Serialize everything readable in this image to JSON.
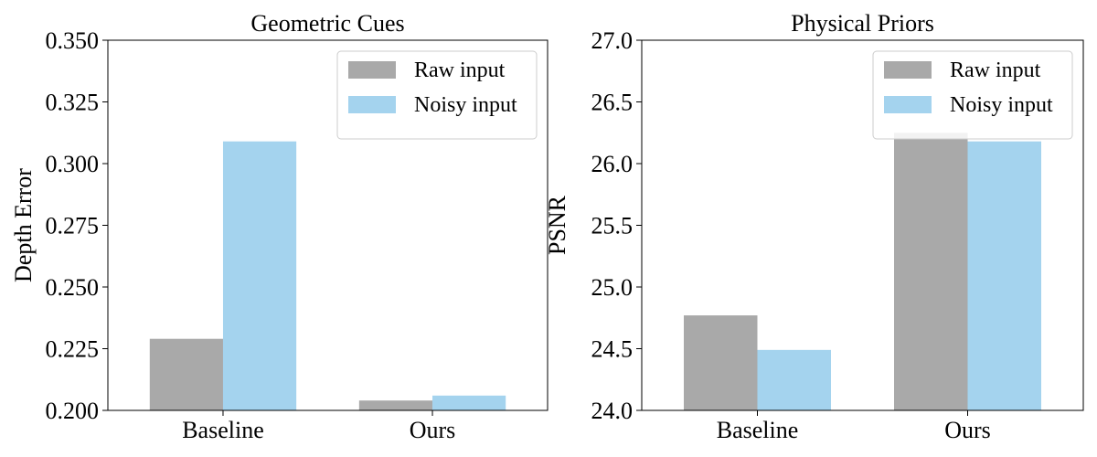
{
  "chart_data": [
    {
      "type": "bar",
      "title": "Geometric Cues",
      "xlabel": "",
      "ylabel": "Depth Error",
      "categories": [
        "Baseline",
        "Ours"
      ],
      "ylim": [
        0.2,
        0.35
      ],
      "yticks": [
        "0.200",
        "0.225",
        "0.250",
        "0.275",
        "0.300",
        "0.325",
        "0.350"
      ],
      "series": [
        {
          "name": "Raw input",
          "color": "#a9a9a9",
          "values": [
            0.229,
            0.204
          ]
        },
        {
          "name": "Noisy input",
          "color": "#a4d3ee",
          "values": [
            0.309,
            0.206
          ]
        }
      ],
      "legend": "top-right",
      "grid": false
    },
    {
      "type": "bar",
      "title": "Physical Priors",
      "xlabel": "",
      "ylabel": "PSNR",
      "categories": [
        "Baseline",
        "Ours"
      ],
      "ylim": [
        24.0,
        27.0
      ],
      "yticks": [
        "24.0",
        "24.5",
        "25.0",
        "25.5",
        "26.0",
        "26.5",
        "27.0"
      ],
      "series": [
        {
          "name": "Raw input",
          "color": "#a9a9a9",
          "values": [
            24.77,
            26.25
          ]
        },
        {
          "name": "Noisy input",
          "color": "#a4d3ee",
          "values": [
            24.49,
            26.18
          ]
        }
      ],
      "legend": "top-right",
      "grid": false
    }
  ]
}
